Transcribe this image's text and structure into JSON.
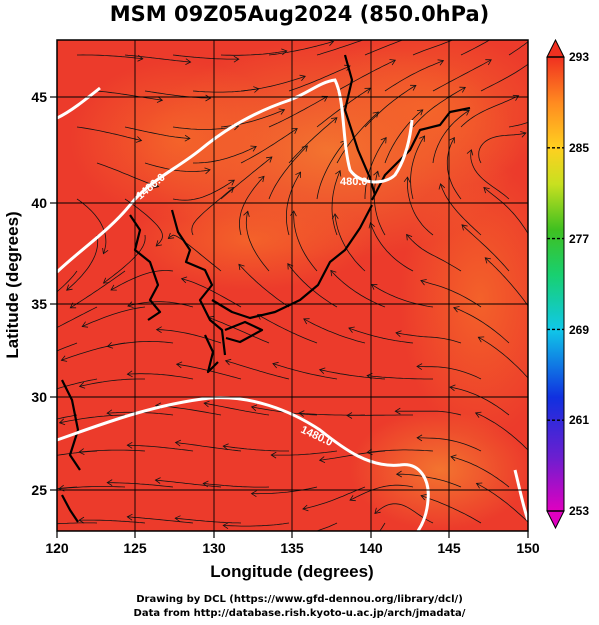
{
  "title": "MSM 09Z05Aug2024 (850.0hPa)",
  "xlabel": "Longitude (degrees)",
  "ylabel": "Latitude (degrees)",
  "xticks": [
    "120",
    "125",
    "130",
    "135",
    "140",
    "145",
    "150"
  ],
  "yticks": [
    "25",
    "30",
    "35",
    "40",
    "45"
  ],
  "colorbar": {
    "labels": [
      "293",
      "285",
      "277",
      "269",
      "261",
      "253"
    ],
    "range": [
      253,
      293
    ]
  },
  "contour_labels": [
    "480.0",
    "1480.0",
    "1480.0"
  ],
  "credits": {
    "line1": "Drawing by DCL (https://www.gfd-dennou.org/library/dcl/)",
    "line2": "Data from http://database.rish.kyoto-u.ac.jp/arch/jmadata/"
  },
  "colors": {
    "map_base": "#ee3a2a",
    "warm": "#f0602a",
    "contour": "#ffffff",
    "streamline": "#111111"
  },
  "map": {
    "lon_range": [
      120,
      150
    ],
    "lat_range": [
      22.5,
      48
    ],
    "field": "temperature (K) shaded, streamlines, geopotential height contours"
  }
}
